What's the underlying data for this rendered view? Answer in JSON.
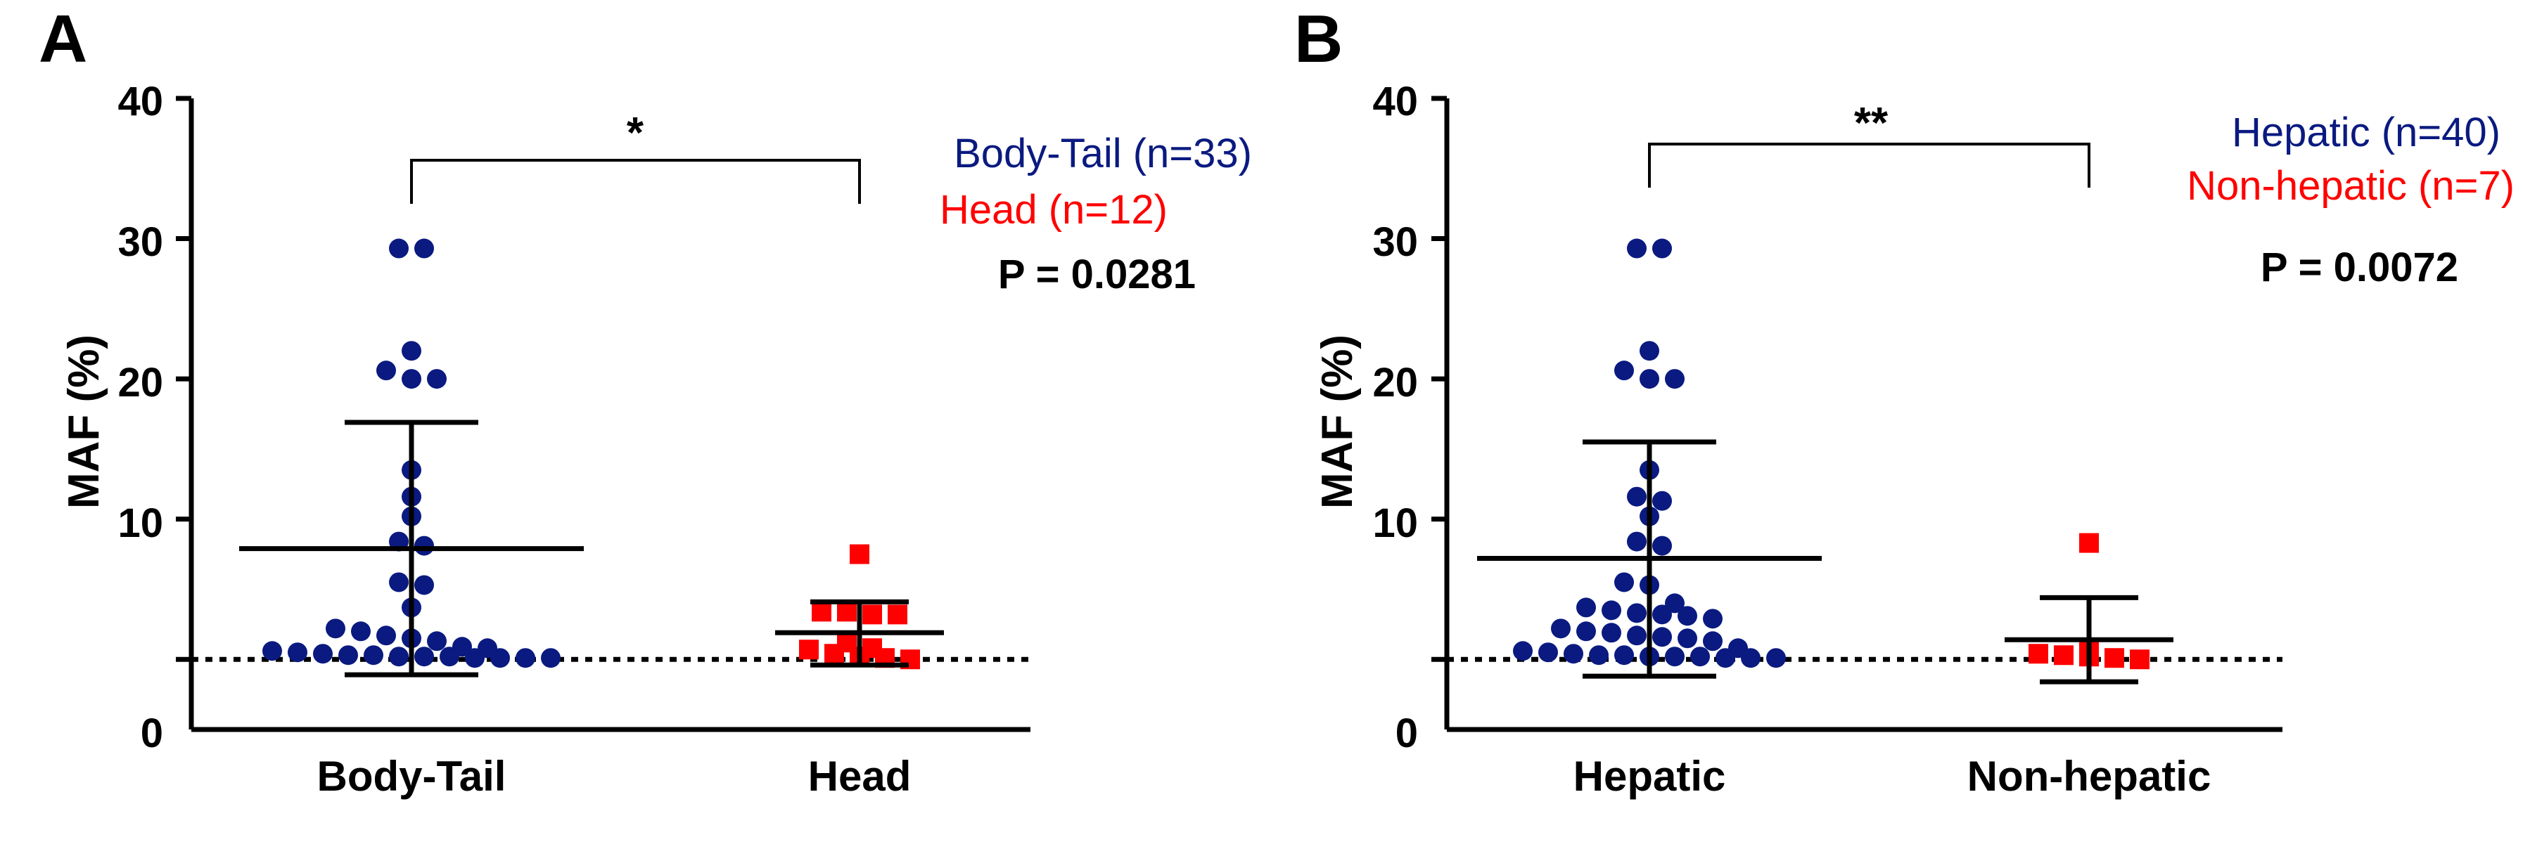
{
  "colors": {
    "group1": "#0a1a80",
    "group2": "#ff0000",
    "axis": "#000000"
  },
  "chart_data": [
    {
      "panel": "A",
      "type": "scatter",
      "ylabel": "MAF (%)",
      "ylim": [
        -5,
        40
      ],
      "yticks": [
        "0",
        "10",
        "20",
        "30",
        "40"
      ],
      "grid": false,
      "legend_position": "top-right",
      "legend": [
        "Body-Tail (n=33)",
        "Head (n=12)"
      ],
      "p_value": "P = 0.0281",
      "significance": "*",
      "categories": [
        "Body-Tail",
        "Head"
      ],
      "series": [
        {
          "name": "Body-Tail (n=33)",
          "marker": "circle",
          "color": "#0a1a80",
          "mean": 7.9,
          "sd_upper": 16.9,
          "sd_lower": -1.1,
          "values": [
            29.3,
            29.3,
            22.0,
            20.6,
            20.0,
            20.0,
            13.5,
            11.6,
            10.2,
            8.4,
            8.1,
            5.5,
            5.3,
            3.7,
            2.2,
            2.0,
            1.7,
            1.5,
            1.3,
            0.8,
            0.6,
            0.4,
            0.3,
            0.2,
            0.2,
            0.1,
            0.1,
            0.1,
            0.1,
            0.2,
            0.3,
            0.5,
            0.9
          ]
        },
        {
          "name": "Head (n=12)",
          "marker": "square",
          "color": "#ff0000",
          "mean": 1.9,
          "sd_upper": 4.1,
          "sd_lower": -0.4,
          "values": [
            7.5,
            3.4,
            3.4,
            3.2,
            3.2,
            1.2,
            0.8,
            0.7,
            0.4,
            0.2,
            0.0,
            0.1
          ]
        }
      ]
    },
    {
      "panel": "B",
      "type": "scatter",
      "ylabel": "MAF (%)",
      "ylim": [
        -5,
        40
      ],
      "yticks": [
        "0",
        "10",
        "20",
        "30",
        "40"
      ],
      "grid": false,
      "legend_position": "top-right",
      "legend": [
        "Hepatic (n=40)",
        "Non-hepatic (n=7)"
      ],
      "p_value": "P = 0.0072",
      "significance": "**",
      "categories": [
        "Hepatic",
        "Non-hepatic"
      ],
      "series": [
        {
          "name": "Hepatic (n=40)",
          "marker": "circle",
          "color": "#0a1a80",
          "mean": 7.2,
          "sd_upper": 15.5,
          "sd_lower": -1.2,
          "values": [
            29.3,
            29.3,
            22.0,
            20.6,
            20.0,
            20.0,
            13.5,
            11.6,
            11.3,
            10.2,
            8.4,
            8.1,
            5.5,
            5.3,
            4.0,
            3.7,
            3.5,
            3.3,
            3.2,
            3.1,
            2.9,
            2.2,
            2.0,
            1.9,
            1.7,
            1.6,
            1.5,
            1.3,
            0.8,
            0.6,
            0.4,
            0.3,
            0.2,
            0.2,
            0.1,
            0.1,
            0.1,
            0.2,
            0.3,
            0.5
          ]
        },
        {
          "name": "Non-hepatic (n=7)",
          "marker": "square",
          "color": "#ff0000",
          "mean": 1.4,
          "sd_upper": 4.4,
          "sd_lower": -1.6,
          "values": [
            8.3,
            0.8,
            0.4,
            0.2,
            0.1,
            0.0,
            0.3
          ]
        }
      ]
    }
  ]
}
